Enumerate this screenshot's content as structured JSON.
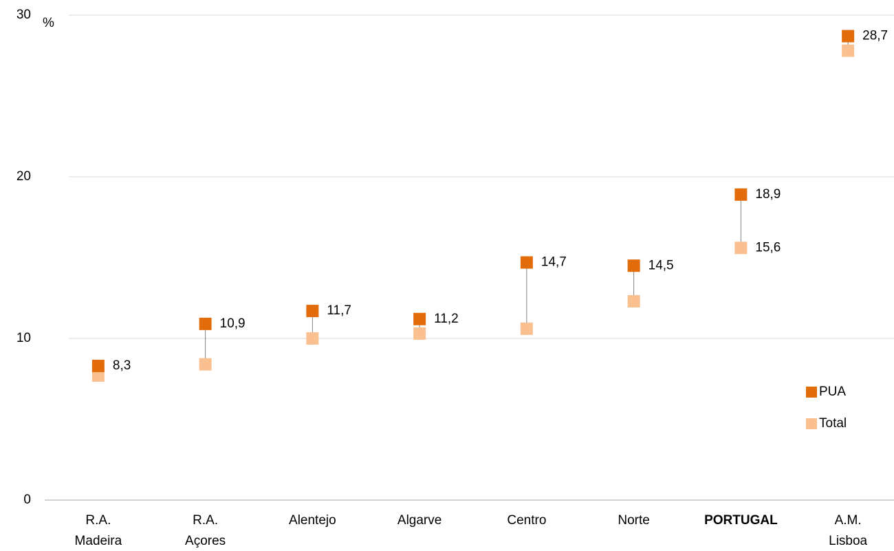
{
  "chart_data": {
    "type": "dot",
    "y_unit": "%",
    "categories": [
      "R.A.\nMadeira",
      "R.A.\nAçores",
      "Alentejo",
      "Algarve",
      "Centro",
      "Norte",
      "PORTUGAL",
      "A.M.\nLisboa"
    ],
    "highlight": "PORTUGAL",
    "series": [
      {
        "name": "PUA",
        "color": "#e36c0a",
        "values": [
          8.3,
          10.9,
          11.7,
          11.2,
          14.7,
          14.5,
          18.9,
          28.7
        ],
        "value_labels": [
          "8,3",
          "10,9",
          "11,7",
          "11,2",
          "14,7",
          "14,5",
          "18,9",
          "28,7"
        ]
      },
      {
        "name": "Total",
        "color": "#fac090",
        "values": [
          7.7,
          8.4,
          10.0,
          10.3,
          10.6,
          12.3,
          15.6,
          27.8
        ],
        "value_labels": [
          null,
          null,
          null,
          null,
          null,
          null,
          "15,6",
          null
        ]
      }
    ],
    "ylim": [
      0,
      30
    ],
    "yticks": [
      0,
      10,
      20,
      30
    ],
    "grid": true,
    "legend": "right"
  }
}
